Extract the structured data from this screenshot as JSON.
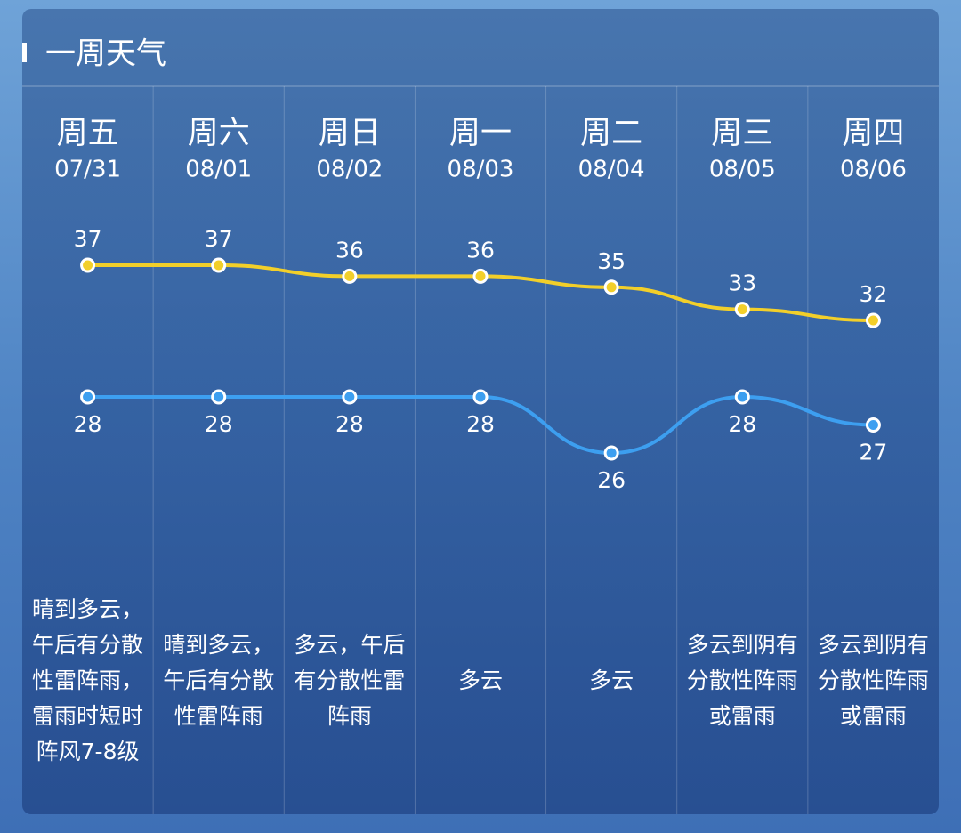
{
  "chart_data": {
    "type": "line",
    "title": "一周天气",
    "categories": [
      "周五",
      "周六",
      "周日",
      "周一",
      "周二",
      "周三",
      "周四"
    ],
    "dates": [
      "07/31",
      "08/01",
      "08/02",
      "08/03",
      "08/04",
      "08/05",
      "08/06"
    ],
    "descriptions": [
      "晴到多云，午后有分散性雷阵雨，雷雨时短时阵风7-8级",
      "晴到多云，午后有分散性雷阵雨",
      "多云，午后有分散性雷阵雨",
      "多云",
      "多云",
      "多云到阴有分散性阵雨或雷雨",
      "多云到阴有分散性阵雨或雷雨"
    ],
    "series": [
      {
        "color": "#f2cf2a",
        "values": [
          37,
          37,
          36,
          36,
          35,
          33,
          32
        ],
        "label_position": "above"
      },
      {
        "color": "#3d9ff0",
        "values": [
          28,
          28,
          28,
          28,
          26,
          28,
          27
        ],
        "label_position": "below"
      }
    ]
  }
}
